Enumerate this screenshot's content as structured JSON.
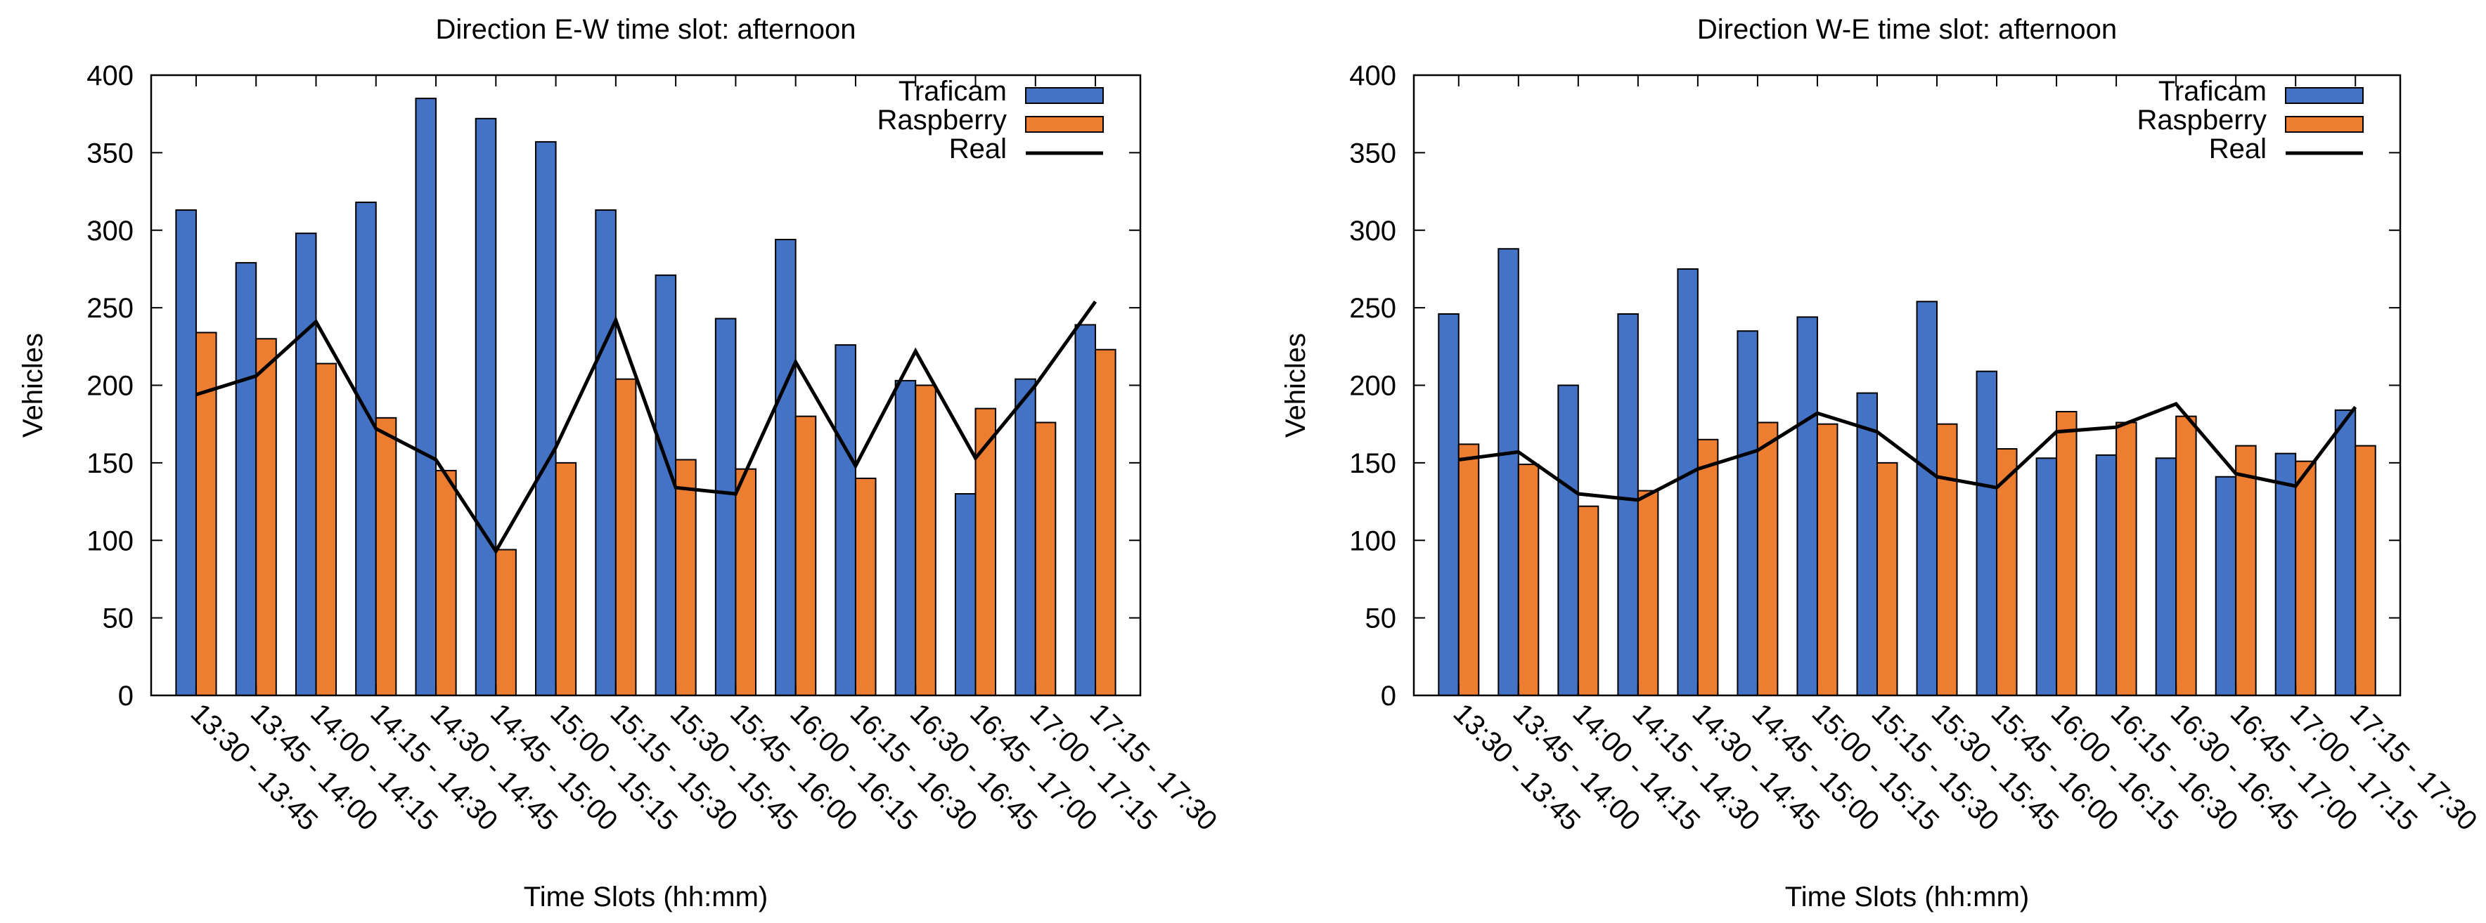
{
  "colors": {
    "traficam": "#4472c4",
    "raspberry": "#ed7d31",
    "real": "#000000"
  },
  "chart_data": [
    {
      "type": "bar",
      "title": "Direction E-W time slot: afternoon",
      "xlabel": "Time Slots (hh:mm)",
      "ylabel": "Vehicles",
      "ylim": [
        0,
        400
      ],
      "yticks": [
        "0",
        "50",
        "100",
        "150",
        "200",
        "250",
        "300",
        "350",
        "400"
      ],
      "legend_position": "top-right",
      "grid": false,
      "categories": [
        "13:30 - 13:45",
        "13:45 - 14:00",
        "14:00 - 14:15",
        "14:15 - 14:30",
        "14:30 - 14:45",
        "14:45 - 15:00",
        "15:00 - 15:15",
        "15:15 - 15:30",
        "15:30 - 15:45",
        "15:45 - 16:00",
        "16:00 - 16:15",
        "16:15 - 16:30",
        "16:30 - 16:45",
        "16:45 - 17:00",
        "17:00 - 17:15",
        "17:15 - 17:30"
      ],
      "series": [
        {
          "name": "Traficam",
          "type": "bar",
          "color": "#4472c4",
          "values": [
            313,
            279,
            298,
            318,
            385,
            372,
            357,
            313,
            271,
            243,
            294,
            226,
            203,
            130,
            204,
            239
          ]
        },
        {
          "name": "Raspberry",
          "type": "bar",
          "color": "#ed7d31",
          "values": [
            234,
            230,
            214,
            179,
            145,
            94,
            150,
            204,
            152,
            146,
            180,
            140,
            200,
            185,
            176,
            223
          ]
        },
        {
          "name": "Real",
          "type": "line",
          "color": "#000000",
          "values": [
            194,
            206,
            241,
            172,
            152,
            93,
            160,
            242,
            134,
            130,
            215,
            148,
            222,
            153,
            200,
            254
          ]
        }
      ]
    },
    {
      "type": "bar",
      "title": "Direction W-E time slot: afternoon",
      "xlabel": "Time Slots (hh:mm)",
      "ylabel": "Vehicles",
      "ylim": [
        0,
        400
      ],
      "yticks": [
        "0",
        "50",
        "100",
        "150",
        "200",
        "250",
        "300",
        "350",
        "400"
      ],
      "legend_position": "top-right",
      "grid": false,
      "categories": [
        "13:30 - 13:45",
        "13:45 - 14:00",
        "14:00 - 14:15",
        "14:15 - 14:30",
        "14:30 - 14:45",
        "14:45 - 15:00",
        "15:00 - 15:15",
        "15:15 - 15:30",
        "15:30 - 15:45",
        "15:45 - 16:00",
        "16:00 - 16:15",
        "16:15 - 16:30",
        "16:30 - 16:45",
        "16:45 - 17:00",
        "17:00 - 17:15",
        "17:15 - 17:30"
      ],
      "series": [
        {
          "name": "Traficam",
          "type": "bar",
          "color": "#4472c4",
          "values": [
            246,
            288,
            200,
            246,
            275,
            235,
            244,
            195,
            254,
            209,
            153,
            155,
            153,
            141,
            156,
            184
          ]
        },
        {
          "name": "Raspberry",
          "type": "bar",
          "color": "#ed7d31",
          "values": [
            162,
            149,
            122,
            132,
            165,
            176,
            175,
            150,
            175,
            159,
            183,
            176,
            180,
            161,
            151,
            161
          ]
        },
        {
          "name": "Real",
          "type": "line",
          "color": "#000000",
          "values": [
            152,
            157,
            130,
            126,
            146,
            158,
            182,
            170,
            141,
            134,
            170,
            173,
            188,
            143,
            135,
            186
          ]
        }
      ]
    }
  ]
}
